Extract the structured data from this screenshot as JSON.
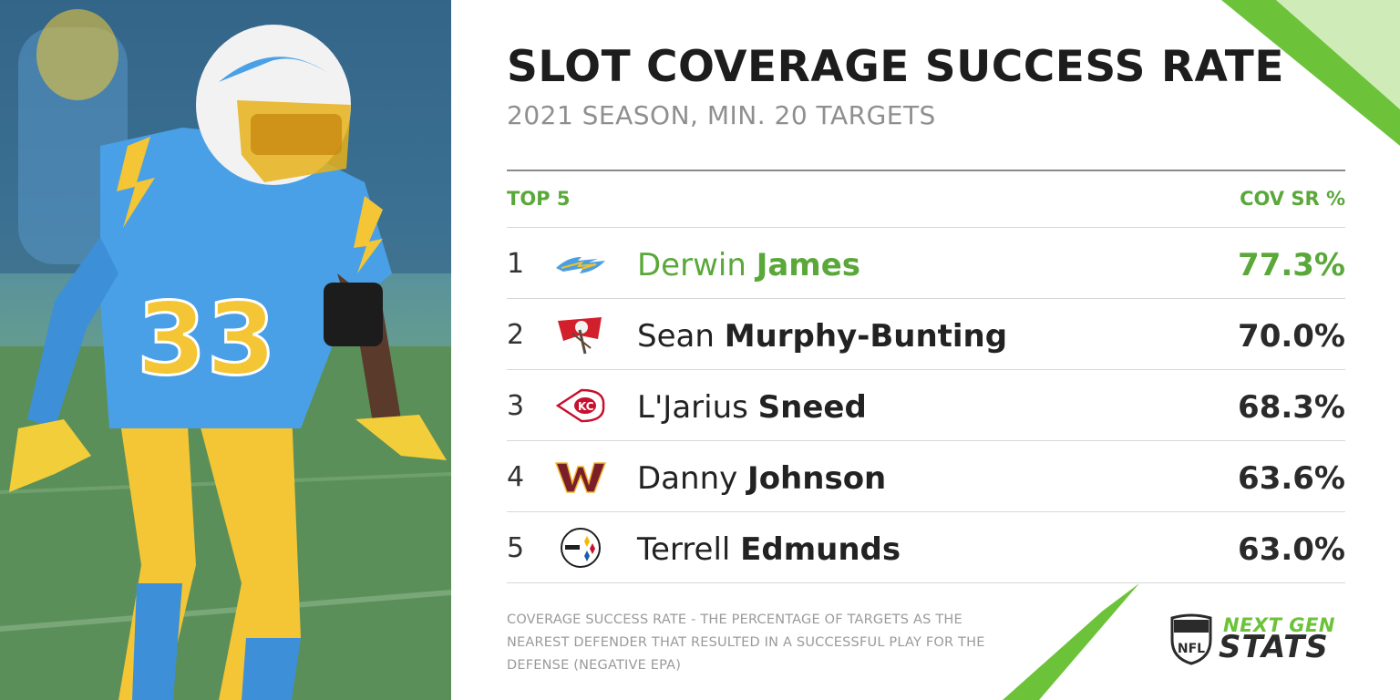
{
  "header": {
    "title": "SLOT COVERAGE SUCCESS RATE",
    "subtitle": "2021 SEASON, MIN. 20 TARGETS"
  },
  "columns": {
    "left": "TOP 5",
    "right": "COV SR %"
  },
  "rows": [
    {
      "rank": "1",
      "first": "Derwin",
      "last": "James",
      "value": "77.3%",
      "team_icon": "chargers-bolt-icon",
      "highlight": true
    },
    {
      "rank": "2",
      "first": "Sean",
      "last": "Murphy-Bunting",
      "value": "70.0%",
      "team_icon": "buccaneers-flag-icon",
      "highlight": false
    },
    {
      "rank": "3",
      "first": "L'Jarius",
      "last": "Sneed",
      "value": "68.3%",
      "team_icon": "chiefs-arrowhead-icon",
      "highlight": false
    },
    {
      "rank": "4",
      "first": "Danny",
      "last": "Johnson",
      "value": "63.6%",
      "team_icon": "washington-w-icon",
      "highlight": false
    },
    {
      "rank": "5",
      "first": "Terrell",
      "last": "Edmunds",
      "value": "63.0%",
      "team_icon": "steelers-logo-icon",
      "highlight": false
    }
  ],
  "footnote": "COVERAGE SUCCESS RATE - THE PERCENTAGE OF TARGETS AS THE NEAREST DEFENDER THAT RESULTED IN A SUCCESSFUL PLAY FOR THE DEFENSE (NEGATIVE EPA)",
  "brand": {
    "line1": "NEXT GEN",
    "line2": "STATS",
    "shield_text": "NFL"
  },
  "photo": {
    "jersey_number": "33"
  },
  "colors": {
    "accent_green": "#5aa83a",
    "bright_green": "#6cc33a",
    "chargers_blue": "#4a9fe0",
    "chargers_gold": "#f2c02e"
  }
}
